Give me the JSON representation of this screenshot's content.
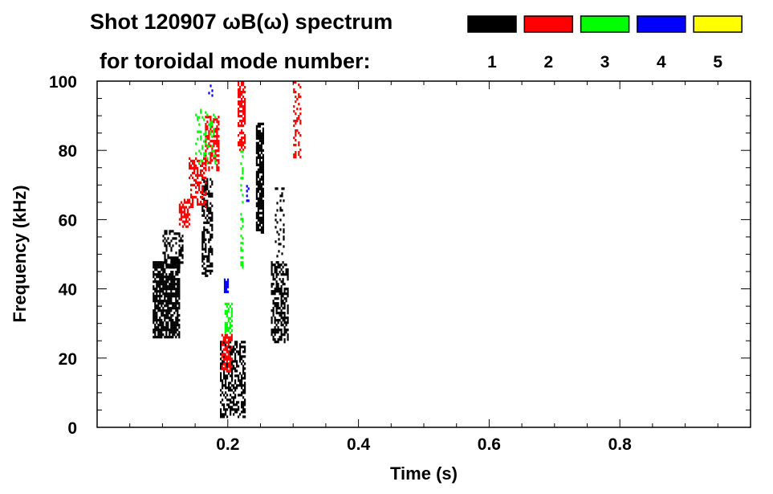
{
  "chart_data": {
    "type": "heatmap",
    "title": "Shot 120907 ωB(ω) spectrum",
    "subtitle": "for toroidal mode number:",
    "xlabel": "Time (s)",
    "ylabel": "Frequency (kHz)",
    "xlim": [
      0,
      1.0
    ],
    "ylim": [
      0,
      100
    ],
    "xticks": [
      0.2,
      0.4,
      0.6,
      0.8
    ],
    "xtick_labels": [
      "0.2",
      "0.4",
      "0.6",
      "0.8"
    ],
    "yticks": [
      0,
      20,
      40,
      60,
      80,
      100
    ],
    "ytick_labels": [
      "0",
      "20",
      "40",
      "60",
      "80",
      "100"
    ],
    "legend": [
      {
        "label": "1",
        "color": "#000000"
      },
      {
        "label": "2",
        "color": "#ff0000"
      },
      {
        "label": "3",
        "color": "#00ff00"
      },
      {
        "label": "4",
        "color": "#0000ff"
      },
      {
        "label": "5",
        "color": "#ffff00"
      }
    ],
    "legend_placement": "top-right",
    "regions": [
      {
        "mode": 1,
        "t": [
          0.085,
          0.125
        ],
        "f": [
          26,
          48
        ],
        "density": 0.75
      },
      {
        "mode": 1,
        "t": [
          0.1,
          0.13
        ],
        "f": [
          46,
          57
        ],
        "density": 0.5
      },
      {
        "mode": 1,
        "t": [
          0.16,
          0.175
        ],
        "f": [
          44,
          72
        ],
        "density": 0.55
      },
      {
        "mode": 1,
        "t": [
          0.188,
          0.225
        ],
        "f": [
          3,
          25
        ],
        "density": 0.5
      },
      {
        "mode": 1,
        "t": [
          0.243,
          0.255
        ],
        "f": [
          56,
          88
        ],
        "density": 0.8
      },
      {
        "mode": 1,
        "t": [
          0.266,
          0.292
        ],
        "f": [
          25,
          48
        ],
        "density": 0.55
      },
      {
        "mode": 1,
        "t": [
          0.272,
          0.285
        ],
        "f": [
          48,
          70
        ],
        "density": 0.15
      },
      {
        "mode": 2,
        "t": [
          0.125,
          0.14
        ],
        "f": [
          58,
          66
        ],
        "density": 0.6
      },
      {
        "mode": 2,
        "t": [
          0.14,
          0.165
        ],
        "f": [
          64,
          78
        ],
        "density": 0.5
      },
      {
        "mode": 2,
        "t": [
          0.165,
          0.185
        ],
        "f": [
          74,
          90
        ],
        "density": 0.55
      },
      {
        "mode": 2,
        "t": [
          0.215,
          0.225
        ],
        "f": [
          80,
          100
        ],
        "density": 0.6
      },
      {
        "mode": 2,
        "t": [
          0.19,
          0.205
        ],
        "f": [
          16,
          27
        ],
        "density": 0.6
      },
      {
        "mode": 2,
        "t": [
          0.3,
          0.31
        ],
        "f": [
          78,
          100
        ],
        "density": 0.3
      },
      {
        "mode": 3,
        "t": [
          0.15,
          0.18
        ],
        "f": [
          76,
          92
        ],
        "density": 0.2
      },
      {
        "mode": 3,
        "t": [
          0.195,
          0.205
        ],
        "f": [
          27,
          36
        ],
        "density": 0.6
      },
      {
        "mode": 3,
        "t": [
          0.219,
          0.223
        ],
        "f": [
          45,
          80
        ],
        "density": 0.3
      },
      {
        "mode": 4,
        "t": [
          0.194,
          0.201
        ],
        "f": [
          39,
          43
        ],
        "density": 0.9
      },
      {
        "mode": 4,
        "t": [
          0.228,
          0.232
        ],
        "f": [
          64,
          70
        ],
        "density": 0.3
      },
      {
        "mode": 4,
        "t": [
          0.17,
          0.176
        ],
        "f": [
          95,
          99
        ],
        "density": 0.3
      }
    ],
    "grid": false
  }
}
